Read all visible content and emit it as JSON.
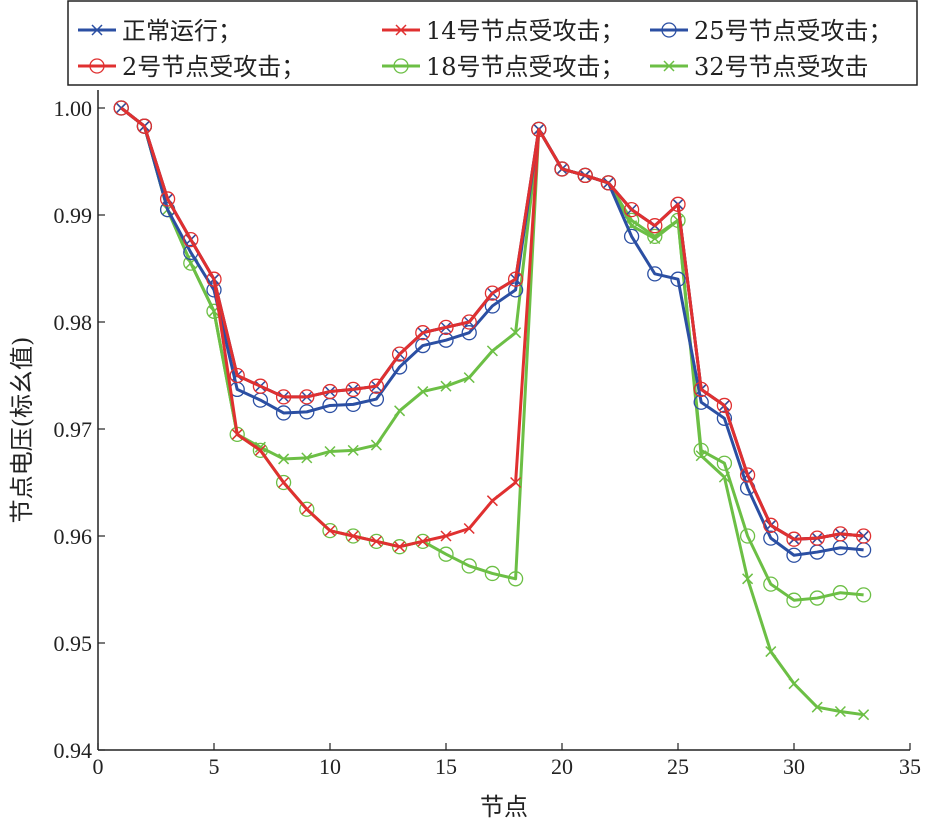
{
  "chart_data": {
    "type": "line",
    "title": "",
    "xlabel": "节点",
    "ylabel": "节点电压(标幺值)",
    "xlim": [
      0,
      35
    ],
    "ylim": [
      0.94,
      1.0
    ],
    "xticks": [
      0,
      5,
      10,
      15,
      20,
      25,
      30,
      35
    ],
    "yticks": [
      0.94,
      0.95,
      0.96,
      0.97,
      0.98,
      0.99,
      1.0
    ],
    "xtick_labels": [
      "0",
      "5",
      "10",
      "15",
      "20",
      "25",
      "30",
      "35"
    ],
    "ytick_labels": [
      "0.94",
      "0.95",
      "0.96",
      "0.97",
      "0.98",
      "0.99",
      "1.00"
    ],
    "grid": false,
    "legend_position": "top",
    "x": [
      1,
      2,
      3,
      4,
      5,
      6,
      7,
      8,
      9,
      10,
      11,
      12,
      13,
      14,
      15,
      16,
      17,
      18,
      19,
      20,
      21,
      22,
      23,
      24,
      25,
      26,
      27,
      28,
      29,
      30,
      31,
      32,
      33
    ],
    "series": [
      {
        "name": "正常运行；",
        "color": "#2b4fa3",
        "marker": "x",
        "values": [
          1.0,
          0.9983,
          0.9915,
          0.9877,
          0.984,
          0.975,
          0.974,
          0.973,
          0.973,
          0.9735,
          0.9737,
          0.974,
          0.977,
          0.979,
          0.9795,
          0.98,
          0.9827,
          0.984,
          0.998,
          0.9943,
          0.9937,
          0.993,
          0.9905,
          0.989,
          0.991,
          0.9737,
          0.9722,
          0.9657,
          0.961,
          0.9597,
          0.9598,
          0.9602,
          0.96
        ]
      },
      {
        "name": "14号节点受攻击；",
        "color": "#e03030",
        "marker": "x",
        "values": [
          1.0,
          0.9983,
          0.9915,
          0.9877,
          0.984,
          0.9695,
          0.968,
          0.965,
          0.9625,
          0.9605,
          0.96,
          0.9595,
          0.959,
          0.9595,
          0.96,
          0.9607,
          0.9633,
          0.965,
          0.998,
          0.9943,
          0.9937,
          0.993,
          0.9905,
          0.989,
          0.991,
          0.9737,
          0.9722,
          0.9657,
          0.961,
          0.9597,
          0.9598,
          0.9602,
          0.96
        ]
      },
      {
        "name": "25号节点受攻击；",
        "color": "#2b4fa3",
        "marker": "o",
        "values": [
          1.0,
          0.9983,
          0.9905,
          0.9865,
          0.983,
          0.9737,
          0.9727,
          0.9715,
          0.9716,
          0.9722,
          0.9723,
          0.9728,
          0.9758,
          0.9778,
          0.9783,
          0.979,
          0.9815,
          0.983,
          0.998,
          0.9943,
          0.9937,
          0.993,
          0.988,
          0.9845,
          0.984,
          0.9725,
          0.971,
          0.9645,
          0.9598,
          0.9582,
          0.9585,
          0.9589,
          0.9587
        ]
      },
      {
        "name": "2号节点受攻击；",
        "color": "#e03030",
        "marker": "o",
        "values": [
          1.0,
          0.9983,
          0.9915,
          0.9877,
          0.984,
          0.975,
          0.974,
          0.973,
          0.973,
          0.9735,
          0.9737,
          0.974,
          0.977,
          0.979,
          0.9795,
          0.98,
          0.9827,
          0.984,
          0.998,
          0.9943,
          0.9937,
          0.993,
          0.9905,
          0.989,
          0.991,
          0.9737,
          0.9722,
          0.9657,
          0.961,
          0.9597,
          0.9598,
          0.9602,
          0.96
        ]
      },
      {
        "name": "18号节点受攻击；",
        "color": "#6cbf45",
        "marker": "o",
        "values": [
          1.0,
          0.9983,
          0.9905,
          0.9855,
          0.981,
          0.9695,
          0.968,
          0.965,
          0.9625,
          0.9605,
          0.96,
          0.9595,
          0.959,
          0.9595,
          0.9583,
          0.9572,
          0.9565,
          0.956,
          0.998,
          0.9943,
          0.9937,
          0.993,
          0.9895,
          0.988,
          0.9895,
          0.968,
          0.9668,
          0.96,
          0.9555,
          0.954,
          0.9542,
          0.9547,
          0.9545
        ]
      },
      {
        "name": "32号节点受攻击",
        "color": "#6cbf45",
        "marker": "x",
        "values": [
          1.0,
          0.9983,
          0.9905,
          0.9855,
          0.981,
          0.9695,
          0.9683,
          0.9672,
          0.9673,
          0.9679,
          0.968,
          0.9685,
          0.9717,
          0.9735,
          0.974,
          0.9748,
          0.9773,
          0.979,
          0.998,
          0.9943,
          0.9937,
          0.993,
          0.989,
          0.9878,
          0.9895,
          0.9675,
          0.9655,
          0.956,
          0.9492,
          0.9462,
          0.944,
          0.9436,
          0.9433
        ]
      }
    ]
  }
}
